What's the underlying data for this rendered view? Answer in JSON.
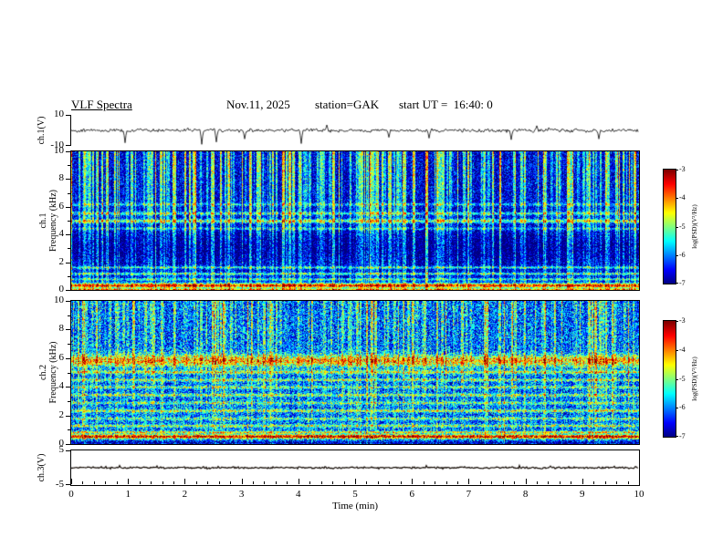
{
  "title": {
    "main": "VLF Spectra",
    "date": "Nov.11, 2025",
    "station": "station=GAK",
    "start_ut": "start UT =  16:40: 0"
  },
  "xaxis": {
    "label": "Time (min)",
    "range": [
      0,
      10
    ],
    "ticks": [
      0,
      1,
      2,
      3,
      4,
      5,
      6,
      7,
      8,
      9,
      10
    ]
  },
  "chart_data": [
    {
      "id": "ch1_waveform",
      "type": "line",
      "channel": "ch.1",
      "ylabel": "ch.1(V)",
      "ylim": [
        -10,
        10
      ],
      "yticks": [
        10,
        -10
      ],
      "noise_amplitude": 1.4,
      "spikes": [
        {
          "x": 0.95,
          "amp": -8
        },
        {
          "x": 2.3,
          "amp": -9
        },
        {
          "x": 2.55,
          "amp": -7.5
        },
        {
          "x": 3.05,
          "amp": -5.5
        },
        {
          "x": 4.05,
          "amp": -8.5
        },
        {
          "x": 4.5,
          "amp": 3.5
        },
        {
          "x": 5.6,
          "amp": -4.5
        },
        {
          "x": 6.3,
          "amp": -5
        },
        {
          "x": 7.75,
          "amp": -6
        },
        {
          "x": 8.2,
          "amp": 3
        },
        {
          "x": 9.3,
          "amp": -5.5
        }
      ]
    },
    {
      "id": "ch1_spectrogram",
      "type": "heatmap",
      "channel": "ch.1",
      "ylabel": "Frequency (kHz)",
      "ylim": [
        0,
        10
      ],
      "yticks": [
        0,
        2,
        4,
        6,
        8,
        10
      ],
      "value_range": [
        -7,
        -3
      ],
      "base_level": -6.6,
      "noise": 0.75,
      "streak_probability": 0.3,
      "streak_gain": [
        1.1,
        1.9
      ],
      "bands": [
        {
          "f": 5.0,
          "w": 0.1,
          "boost": 1.6
        },
        {
          "f": 5.55,
          "w": 0.08,
          "boost": 1.2
        },
        {
          "f": 6.2,
          "w": 0.07,
          "boost": 0.9
        },
        {
          "f": 4.45,
          "w": 0.07,
          "boost": 0.9
        },
        {
          "f": 3.1,
          "w": 0.9,
          "boost": -0.5
        },
        {
          "f": 1.65,
          "w": 0.06,
          "boost": 1.3
        },
        {
          "f": 1.2,
          "w": 0.06,
          "boost": 1.4
        },
        {
          "f": 0.8,
          "w": 0.06,
          "boost": 1.2
        },
        {
          "f": 0.35,
          "w": 0.12,
          "boost": 2.9
        },
        {
          "f": 0.05,
          "w": 0.07,
          "boost": 2.2
        }
      ],
      "colorbar": {
        "label": "log(PSD)(V²/Hz)",
        "ticks": [
          -3,
          -4,
          -5,
          -6,
          -7
        ],
        "range": [
          -7,
          -3
        ],
        "colormap": "jet"
      }
    },
    {
      "id": "ch2_spectrogram",
      "type": "heatmap",
      "channel": "ch.2",
      "ylabel": "Frequency (kHz)",
      "ylim": [
        0,
        10
      ],
      "yticks": [
        0,
        2,
        4,
        6,
        8,
        10
      ],
      "value_range": [
        -7,
        -3
      ],
      "base_level": -6.1,
      "noise": 0.95,
      "streak_probability": 0.24,
      "streak_gain": [
        0.5,
        1.5
      ],
      "bands": [
        {
          "f": 5.85,
          "w": 0.3,
          "boost": 1.8
        },
        {
          "f": 5.05,
          "w": 0.08,
          "boost": 1.3
        },
        {
          "f": 4.5,
          "w": 0.07,
          "boost": 1.1
        },
        {
          "f": 4.0,
          "w": 0.07,
          "boost": 1.0
        },
        {
          "f": 3.45,
          "w": 0.07,
          "boost": 1.2
        },
        {
          "f": 2.9,
          "w": 0.07,
          "boost": 1.0
        },
        {
          "f": 2.35,
          "w": 0.07,
          "boost": 1.3
        },
        {
          "f": 1.8,
          "w": 0.07,
          "boost": 1.0
        },
        {
          "f": 1.3,
          "w": 0.07,
          "boost": 1.2
        },
        {
          "f": 0.85,
          "w": 0.06,
          "boost": 1.6
        },
        {
          "f": 0.55,
          "w": 0.1,
          "boost": 2.8
        },
        {
          "f": 0.12,
          "w": 0.1,
          "boost": -0.8
        }
      ],
      "colorbar": {
        "label": "log(PSD)(V²/Hz)",
        "ticks": [
          -3,
          -4,
          -5,
          -6,
          -7
        ],
        "range": [
          -7,
          -3
        ],
        "colormap": "jet"
      }
    },
    {
      "id": "ch3_waveform",
      "type": "line",
      "channel": "ch.3",
      "ylabel": "ch.3(V)",
      "ylim": [
        -5,
        5
      ],
      "yticks": [
        5,
        -5
      ],
      "noise_amplitude": 0.35,
      "spikes": []
    }
  ]
}
